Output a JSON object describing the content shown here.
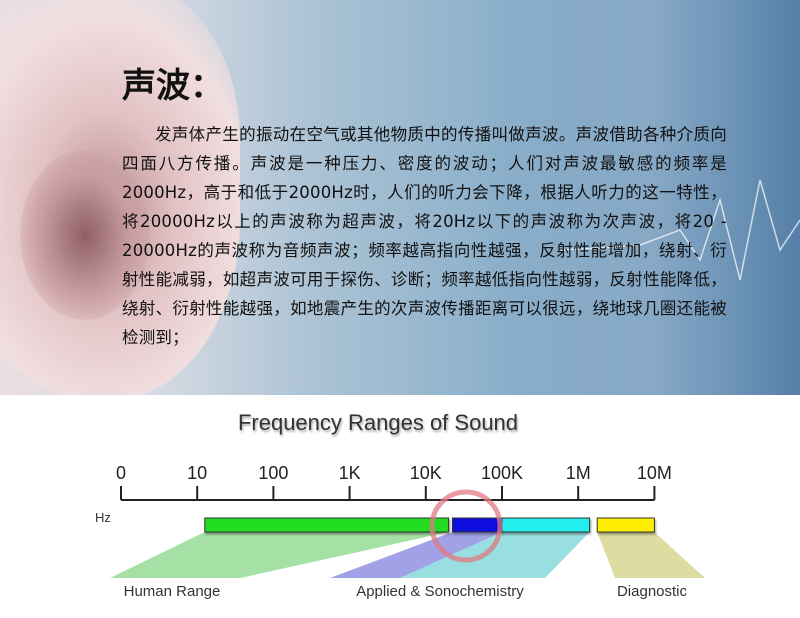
{
  "heading": "声波：",
  "paragraph": "发声体产生的振动在空气或其他物质中的传播叫做声波。声波借助各种介质向四面八方传播。声波是一种压力、密度的波动；人们对声波最敏感的频率是2000Hz，高于和低于2000Hz时，人们的听力会下降，根据人听力的这一特性，将20000Hz以上的声波称为超声波，将20Hz以下的声波称为次声波，将20 - 20000Hz的声波称为音频声波；频率越高指向性越强，反射性能增加，绕射、衍射性能减弱，如超声波可用于探伤、诊断；频率越低指向性越弱，反射性能降低，绕射、衍射性能越强，如地震产生的次声波传播距离可以很远，绕地球几圈还能被检测到；",
  "diagram": {
    "title": "Frequency Ranges of Sound",
    "unit": "Hz",
    "ticks": [
      "0",
      "10",
      "100",
      "1K",
      "10K",
      "100K",
      "1M",
      "10M"
    ],
    "ranges": [
      {
        "label": "Human Range",
        "from_decade": 1.1,
        "to_decade": 4.3,
        "color": "#22dd22",
        "shade": "#8fd88f"
      },
      {
        "label": "",
        "from_decade": 4.35,
        "to_decade": 5.0,
        "color": "#1010dd",
        "shade": "#8a8ae0"
      },
      {
        "label": "Applied & Sonochemistry",
        "from_decade": 5.0,
        "to_decade": 6.15,
        "color": "#22eeee",
        "shade": "#7fd6d8"
      },
      {
        "label": "Diagnostic",
        "from_decade": 6.25,
        "to_decade": 7.0,
        "color": "#ffee00",
        "shade": "#d4d48a"
      }
    ],
    "highlight_color": "#e07a80"
  }
}
